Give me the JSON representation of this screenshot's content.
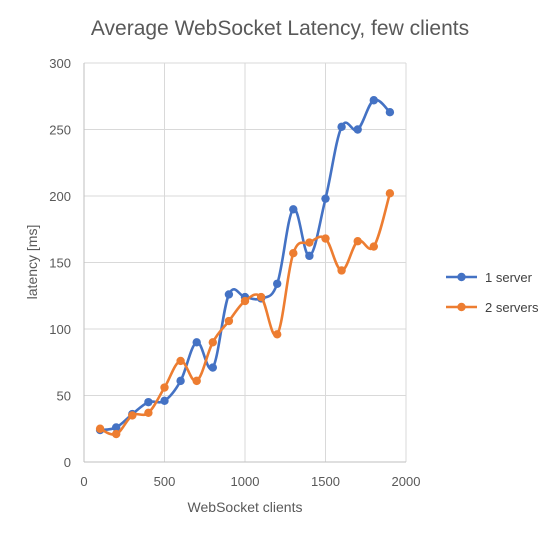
{
  "chart_data": {
    "type": "line",
    "title": "Average WebSocket Latency, few clients",
    "xlabel": "WebSocket clients",
    "ylabel": "latency [ms]",
    "xlim": [
      0,
      2000
    ],
    "ylim": [
      0,
      300
    ],
    "x_ticks": [
      "0",
      "500",
      "1000",
      "1500",
      "2000"
    ],
    "y_ticks": [
      "0",
      "50",
      "100",
      "150",
      "200",
      "250",
      "300"
    ],
    "grid": "both",
    "legend_position": "right",
    "smooth": true,
    "x": [
      100,
      200,
      300,
      400,
      500,
      600,
      700,
      800,
      900,
      1000,
      1100,
      1200,
      1300,
      1400,
      1500,
      1600,
      1700,
      1800,
      1900
    ],
    "series": [
      {
        "name": "1 server",
        "color": "#4472C4",
        "values": [
          24,
          26,
          36,
          45,
          46,
          61,
          90,
          71,
          126,
          124,
          123,
          134,
          190,
          155,
          198,
          252,
          250,
          272,
          263
        ]
      },
      {
        "name": "2 servers",
        "color": "#ED7D31",
        "values": [
          25,
          21,
          35,
          37,
          56,
          76,
          61,
          90,
          106,
          121,
          124,
          96,
          157,
          165,
          168,
          144,
          166,
          162,
          202
        ]
      }
    ]
  }
}
